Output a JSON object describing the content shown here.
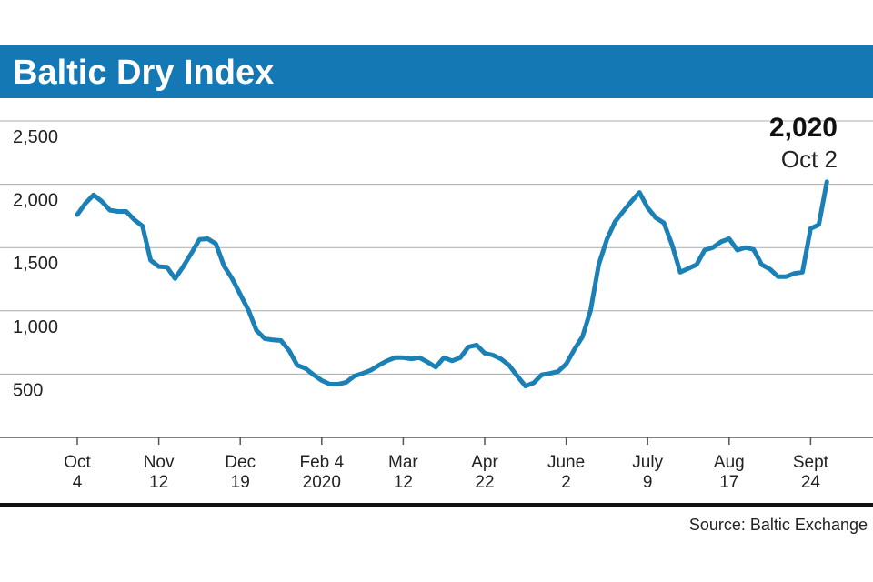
{
  "chart_data": {
    "type": "line",
    "title": "Baltic Dry Index",
    "source": "Source: Baltic Exchange",
    "categories": [
      "Oct\n4",
      null,
      null,
      null,
      null,
      null,
      null,
      null,
      null,
      null,
      "Nov\n12",
      null,
      null,
      null,
      null,
      null,
      null,
      null,
      null,
      null,
      "Dec\n19",
      null,
      null,
      null,
      null,
      null,
      null,
      null,
      null,
      null,
      "Feb 4\n2020",
      null,
      null,
      null,
      null,
      null,
      null,
      null,
      null,
      null,
      "Mar\n12",
      null,
      null,
      null,
      null,
      null,
      null,
      null,
      null,
      null,
      "Apr\n22",
      null,
      null,
      null,
      null,
      null,
      null,
      null,
      null,
      null,
      "June\n2",
      null,
      null,
      null,
      null,
      null,
      null,
      null,
      null,
      null,
      "July\n9",
      null,
      null,
      null,
      null,
      null,
      null,
      null,
      null,
      null,
      "Aug\n17",
      null,
      null,
      null,
      null,
      null,
      null,
      null,
      null,
      null,
      "Sept\n24",
      null,
      null
    ],
    "series": [
      {
        "name": "Baltic Dry Index",
        "color": "#1a80b6",
        "values": [
          1760,
          1850,
          1915,
          1865,
          1795,
          1785,
          1785,
          1720,
          1670,
          1400,
          1350,
          1345,
          1255,
          1350,
          1455,
          1565,
          1570,
          1530,
          1355,
          1255,
          1130,
          1005,
          845,
          780,
          770,
          765,
          685,
          570,
          545,
          495,
          450,
          420,
          420,
          435,
          485,
          505,
          530,
          570,
          605,
          630,
          630,
          620,
          630,
          595,
          555,
          630,
          605,
          630,
          715,
          730,
          665,
          650,
          620,
          570,
          485,
          405,
          430,
          495,
          505,
          520,
          580,
          695,
          795,
          1005,
          1365,
          1565,
          1705,
          1785,
          1865,
          1935,
          1815,
          1735,
          1695,
          1520,
          1305,
          1335,
          1365,
          1480,
          1500,
          1545,
          1570,
          1480,
          1500,
          1485,
          1365,
          1330,
          1270,
          1270,
          1295,
          1305,
          1650,
          1680,
          2020
        ]
      }
    ],
    "annotation": {
      "value_label": "2,020",
      "date": "Oct 2"
    },
    "ylim": [
      0,
      2500
    ],
    "yticks": [
      500,
      {
        "value": 1000,
        "label": "1,000"
      },
      {
        "value": 1500,
        "label": "1,500"
      },
      {
        "value": 2000,
        "label": "2,000"
      },
      {
        "value": 2500,
        "label": "2,500"
      }
    ],
    "grid": true
  }
}
